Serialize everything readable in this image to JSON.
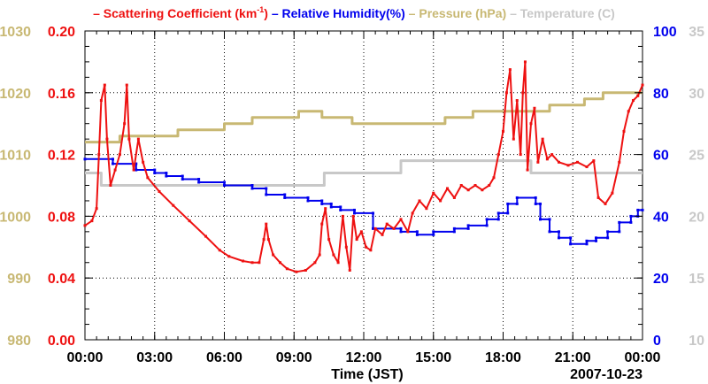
{
  "chart_data": {
    "type": "line",
    "title_parts": [
      {
        "text": "– Scattering Coefficient (km",
        "color": "#ee1111"
      },
      {
        "text": "-1",
        "color": "#ee1111",
        "sup": true
      },
      {
        "text": ")",
        "color": "#ee1111"
      },
      {
        "text": " – Relative Humidity(%)",
        "color": "#0000ee"
      },
      {
        "text": " – Pressure (hPa)",
        "color": "#c8b873"
      },
      {
        "text": " – Temperature (C)",
        "color": "#c8c8c8"
      }
    ],
    "xlabel": "Time (JST)",
    "date_label": "2007-10-23",
    "x_range": [
      0,
      24
    ],
    "x_ticks": [
      0,
      3,
      6,
      9,
      12,
      15,
      18,
      21,
      24
    ],
    "x_tick_labels": [
      "00:00",
      "03:00",
      "06:00",
      "09:00",
      "12:00",
      "15:00",
      "18:00",
      "21:00",
      "00:00"
    ],
    "axes": {
      "pressure": {
        "range": [
          980,
          1030
        ],
        "ticks": [
          980,
          990,
          1000,
          1010,
          1020,
          1030
        ],
        "color": "#c8b873",
        "side": "left-outer"
      },
      "scattering": {
        "range": [
          0,
          0.2
        ],
        "ticks": [
          "0.00",
          "0.04",
          "0.08",
          "0.12",
          "0.16",
          "0.20"
        ],
        "color": "#ee1111",
        "side": "left-inner"
      },
      "humidity": {
        "range": [
          0,
          100
        ],
        "ticks": [
          0,
          20,
          40,
          60,
          80,
          100
        ],
        "color": "#0000ee",
        "side": "right-inner"
      },
      "temperature": {
        "range": [
          10,
          35
        ],
        "ticks": [
          10,
          15,
          20,
          25,
          30,
          35
        ],
        "color": "#c8c8c8",
        "side": "right-outer"
      }
    },
    "series": [
      {
        "name": "Temperature (C)",
        "axis": "temperature",
        "color": "#c8c8c8",
        "step": true,
        "points": [
          [
            0,
            23.5
          ],
          [
            0.7,
            23.5
          ],
          [
            0.7,
            22.5
          ],
          [
            10.3,
            22.5
          ],
          [
            10.3,
            23.5
          ],
          [
            13.6,
            23.5
          ],
          [
            13.6,
            24.5
          ],
          [
            19.2,
            24.5
          ],
          [
            19.2,
            23.5
          ],
          [
            24,
            23.5
          ]
        ]
      },
      {
        "name": "Pressure (hPa)",
        "axis": "pressure",
        "color": "#c8b873",
        "step": true,
        "points": [
          [
            0,
            1012
          ],
          [
            1.5,
            1012
          ],
          [
            1.5,
            1013
          ],
          [
            4,
            1013
          ],
          [
            4,
            1014
          ],
          [
            6,
            1014
          ],
          [
            6,
            1015
          ],
          [
            7.2,
            1015
          ],
          [
            7.2,
            1016
          ],
          [
            9.2,
            1016
          ],
          [
            9.2,
            1017
          ],
          [
            10.2,
            1017
          ],
          [
            10.2,
            1016
          ],
          [
            11.5,
            1016
          ],
          [
            11.5,
            1015
          ],
          [
            15.5,
            1015
          ],
          [
            15.5,
            1016
          ],
          [
            16.7,
            1016
          ],
          [
            16.7,
            1017
          ],
          [
            20,
            1017
          ],
          [
            20,
            1018
          ],
          [
            21.5,
            1018
          ],
          [
            21.5,
            1019
          ],
          [
            22.3,
            1019
          ],
          [
            22.3,
            1020
          ],
          [
            24,
            1020
          ]
        ]
      },
      {
        "name": "Relative Humidity (%)",
        "axis": "humidity",
        "color": "#0000ee",
        "step": true,
        "markers": true,
        "points": [
          [
            0,
            58.5
          ],
          [
            1.2,
            58.5
          ],
          [
            1.2,
            57
          ],
          [
            2.2,
            57
          ],
          [
            2.2,
            55
          ],
          [
            3,
            55
          ],
          [
            3,
            54
          ],
          [
            3.5,
            54
          ],
          [
            3.5,
            53
          ],
          [
            4.2,
            53
          ],
          [
            4.2,
            52
          ],
          [
            4.9,
            52
          ],
          [
            4.9,
            51
          ],
          [
            6,
            51
          ],
          [
            6,
            50
          ],
          [
            7.2,
            50
          ],
          [
            7.2,
            49
          ],
          [
            7.8,
            49
          ],
          [
            7.8,
            47
          ],
          [
            8.6,
            47
          ],
          [
            8.6,
            46
          ],
          [
            9.6,
            46
          ],
          [
            9.6,
            45
          ],
          [
            10.2,
            45
          ],
          [
            10.2,
            44
          ],
          [
            10.6,
            44
          ],
          [
            10.6,
            43
          ],
          [
            11,
            43
          ],
          [
            11,
            42
          ],
          [
            11.6,
            42
          ],
          [
            11.6,
            41
          ],
          [
            12.4,
            41
          ],
          [
            12.4,
            36
          ],
          [
            13.6,
            36
          ],
          [
            13.6,
            35
          ],
          [
            14.3,
            35
          ],
          [
            14.3,
            34
          ],
          [
            15,
            34
          ],
          [
            15,
            35
          ],
          [
            15.9,
            35
          ],
          [
            15.9,
            36
          ],
          [
            16.5,
            36
          ],
          [
            16.5,
            37
          ],
          [
            17.3,
            37
          ],
          [
            17.3,
            39
          ],
          [
            17.8,
            39
          ],
          [
            17.8,
            41
          ],
          [
            18.2,
            41
          ],
          [
            18.2,
            44
          ],
          [
            18.6,
            44
          ],
          [
            18.6,
            46
          ],
          [
            19.4,
            46
          ],
          [
            19.4,
            44
          ],
          [
            19.6,
            44
          ],
          [
            19.6,
            39
          ],
          [
            20,
            39
          ],
          [
            20,
            35
          ],
          [
            20.4,
            35
          ],
          [
            20.4,
            33
          ],
          [
            20.9,
            33
          ],
          [
            20.9,
            31
          ],
          [
            21.6,
            31
          ],
          [
            21.6,
            32
          ],
          [
            22,
            32
          ],
          [
            22,
            33
          ],
          [
            22.5,
            33
          ],
          [
            22.5,
            35
          ],
          [
            23,
            35
          ],
          [
            23,
            38
          ],
          [
            23.5,
            38
          ],
          [
            23.5,
            40
          ],
          [
            23.8,
            40
          ],
          [
            23.8,
            42
          ],
          [
            24,
            42
          ]
        ]
      },
      {
        "name": "Scattering Coefficient (km-1)",
        "axis": "scattering",
        "color": "#ee1111",
        "markers": true,
        "points": [
          [
            0,
            0.074
          ],
          [
            0.3,
            0.077
          ],
          [
            0.5,
            0.085
          ],
          [
            0.6,
            0.12
          ],
          [
            0.7,
            0.155
          ],
          [
            0.85,
            0.165
          ],
          [
            0.95,
            0.13
          ],
          [
            1.1,
            0.1
          ],
          [
            1.3,
            0.11
          ],
          [
            1.5,
            0.12
          ],
          [
            1.7,
            0.14
          ],
          [
            1.8,
            0.165
          ],
          [
            1.9,
            0.13
          ],
          [
            2.1,
            0.11
          ],
          [
            2.3,
            0.13
          ],
          [
            2.5,
            0.115
          ],
          [
            2.7,
            0.105
          ],
          [
            3.2,
            0.096
          ],
          [
            3.8,
            0.087
          ],
          [
            4.5,
            0.077
          ],
          [
            5.2,
            0.067
          ],
          [
            5.8,
            0.058
          ],
          [
            6.2,
            0.054
          ],
          [
            6.8,
            0.051
          ],
          [
            7.2,
            0.05
          ],
          [
            7.5,
            0.05
          ],
          [
            7.7,
            0.065
          ],
          [
            7.8,
            0.075
          ],
          [
            7.9,
            0.065
          ],
          [
            8.1,
            0.055
          ],
          [
            8.4,
            0.05
          ],
          [
            8.7,
            0.046
          ],
          [
            9.1,
            0.044
          ],
          [
            9.5,
            0.045
          ],
          [
            9.9,
            0.05
          ],
          [
            10.1,
            0.055
          ],
          [
            10.2,
            0.075
          ],
          [
            10.35,
            0.085
          ],
          [
            10.5,
            0.065
          ],
          [
            10.7,
            0.055
          ],
          [
            10.9,
            0.05
          ],
          [
            11.1,
            0.08
          ],
          [
            11.25,
            0.06
          ],
          [
            11.4,
            0.045
          ],
          [
            11.55,
            0.08
          ],
          [
            11.7,
            0.065
          ],
          [
            11.9,
            0.07
          ],
          [
            12.1,
            0.06
          ],
          [
            12.3,
            0.058
          ],
          [
            12.5,
            0.072
          ],
          [
            12.8,
            0.068
          ],
          [
            13,
            0.075
          ],
          [
            13.3,
            0.072
          ],
          [
            13.6,
            0.078
          ],
          [
            13.9,
            0.07
          ],
          [
            14.1,
            0.082
          ],
          [
            14.4,
            0.09
          ],
          [
            14.7,
            0.085
          ],
          [
            15,
            0.095
          ],
          [
            15.3,
            0.09
          ],
          [
            15.6,
            0.098
          ],
          [
            15.9,
            0.092
          ],
          [
            16.2,
            0.1
          ],
          [
            16.5,
            0.097
          ],
          [
            16.8,
            0.1
          ],
          [
            17.1,
            0.097
          ],
          [
            17.4,
            0.1
          ],
          [
            17.6,
            0.105
          ],
          [
            17.8,
            0.12
          ],
          [
            18,
            0.135
          ],
          [
            18.15,
            0.16
          ],
          [
            18.3,
            0.175
          ],
          [
            18.45,
            0.13
          ],
          [
            18.6,
            0.155
          ],
          [
            18.75,
            0.12
          ],
          [
            18.85,
            0.16
          ],
          [
            18.95,
            0.18
          ],
          [
            19.05,
            0.11
          ],
          [
            19.2,
            0.14
          ],
          [
            19.35,
            0.15
          ],
          [
            19.5,
            0.115
          ],
          [
            19.7,
            0.13
          ],
          [
            19.9,
            0.117
          ],
          [
            20.1,
            0.12
          ],
          [
            20.4,
            0.115
          ],
          [
            20.8,
            0.113
          ],
          [
            21.2,
            0.115
          ],
          [
            21.6,
            0.112
          ],
          [
            21.9,
            0.116
          ],
          [
            22.1,
            0.092
          ],
          [
            22.4,
            0.088
          ],
          [
            22.7,
            0.095
          ],
          [
            23,
            0.115
          ],
          [
            23.2,
            0.135
          ],
          [
            23.4,
            0.148
          ],
          [
            23.6,
            0.155
          ],
          [
            23.8,
            0.158
          ],
          [
            24,
            0.165
          ]
        ]
      }
    ]
  }
}
